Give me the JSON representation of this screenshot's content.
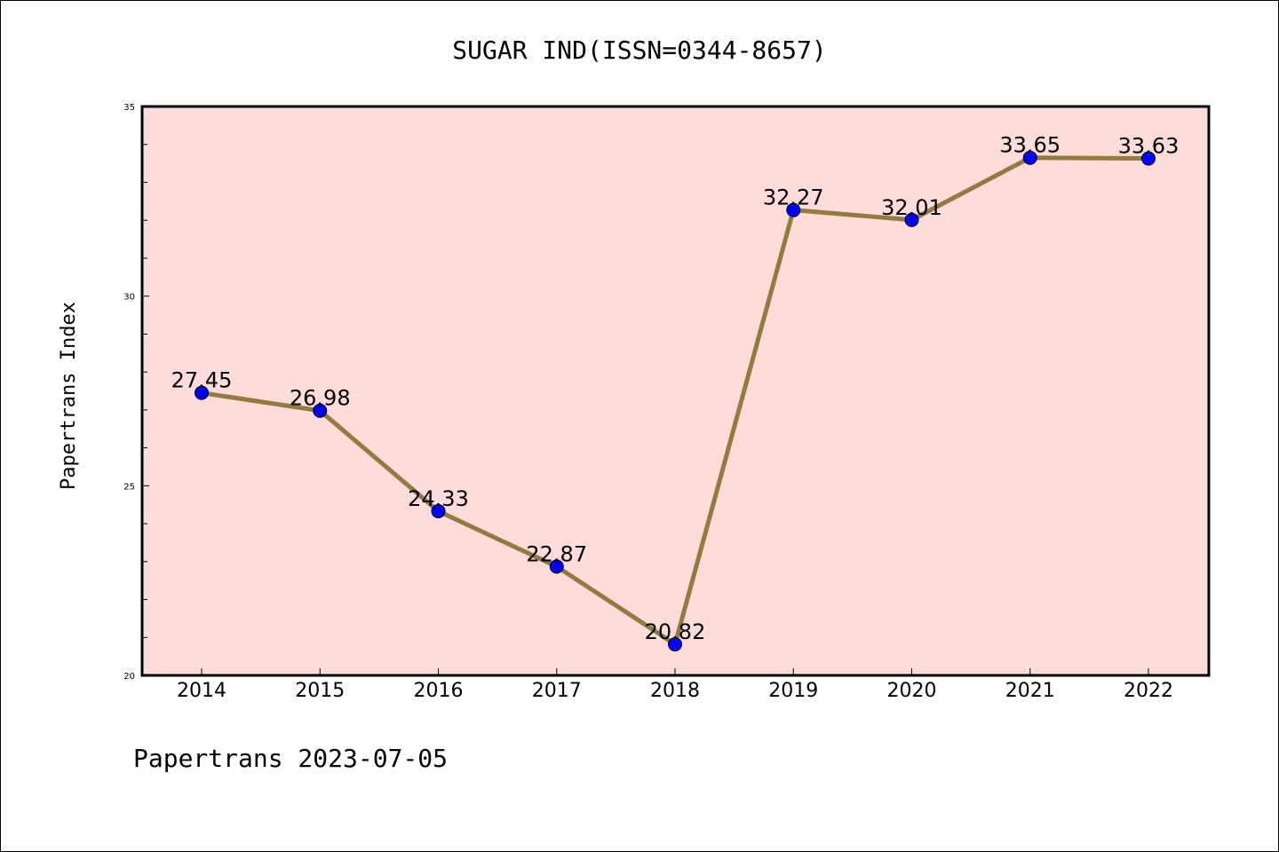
{
  "chart_data": {
    "type": "line",
    "title": "SUGAR IND(ISSN=0344-8657)",
    "ylabel": "Papertrans Index",
    "xlabel": "",
    "categories": [
      "2014",
      "2015",
      "2016",
      "2017",
      "2018",
      "2019",
      "2020",
      "2021",
      "2022"
    ],
    "series": [
      {
        "values": [
          27.45,
          26.98,
          24.33,
          22.87,
          20.82,
          32.27,
          32.01,
          33.65,
          33.63
        ]
      }
    ],
    "data_labels": [
      "27.45",
      "26.98",
      "24.33",
      "22.87",
      "20.82",
      "32.27",
      "32.01",
      "33.65",
      "33.63"
    ],
    "ylim": [
      20,
      35
    ],
    "yticks": [
      20,
      25,
      30,
      35
    ],
    "grid": false,
    "legend": "none",
    "colors": {
      "plot_background": "#fddcd9",
      "line": "#8f7c3e",
      "marker": "#0000ff"
    }
  },
  "footer": "Papertrans 2023-07-05"
}
